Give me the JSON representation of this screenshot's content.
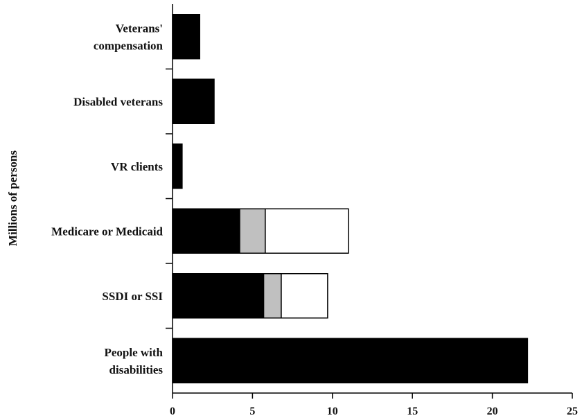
{
  "chart_data": {
    "type": "bar",
    "orientation": "horizontal",
    "stacked": true,
    "title": "",
    "xlabel": "",
    "ylabel": "Millions of persons",
    "xlim": [
      0,
      25
    ],
    "xticks": [
      0,
      5,
      10,
      15,
      20,
      25
    ],
    "grid": false,
    "legend": "none",
    "categories": [
      [
        "Veterans'",
        "compensation"
      ],
      [
        "Disabled veterans"
      ],
      [
        "VR clients"
      ],
      [
        "Medicare or Medicaid"
      ],
      [
        "SSDI or SSI"
      ],
      [
        "People with",
        "disabilities"
      ]
    ],
    "series": [
      {
        "color": "#000000",
        "values": [
          1.7,
          2.6,
          0.6,
          4.2,
          5.7,
          22.2
        ]
      },
      {
        "color": "#c0c0c0",
        "values": [
          0,
          0,
          0,
          1.6,
          1.1,
          0
        ]
      },
      {
        "color": "#ffffff",
        "values": [
          0,
          0,
          0,
          5.2,
          2.9,
          0
        ]
      }
    ]
  }
}
